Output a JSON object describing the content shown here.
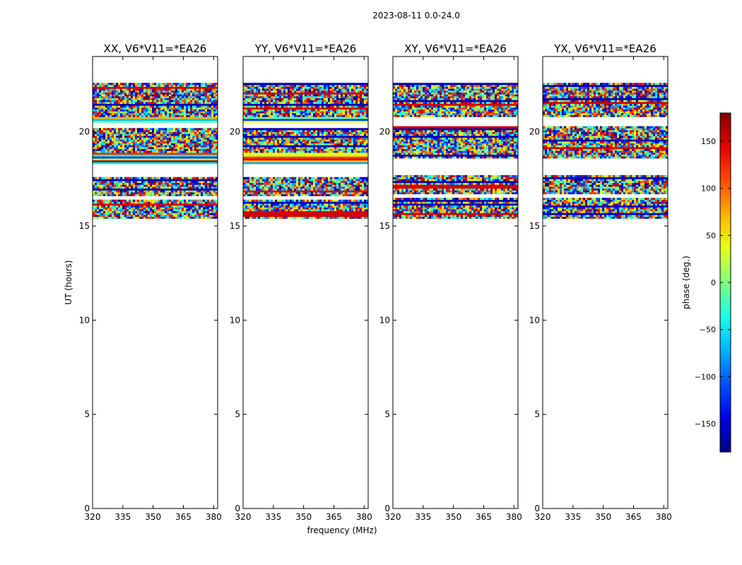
{
  "chart_data": {
    "type": "heatmap",
    "suptitle": "2023-08-11 0.0-24.0",
    "xlabel": "frequency (MHz)",
    "ylabel": "UT (hours)",
    "xlim": [
      320,
      382
    ],
    "ylim": [
      0,
      24
    ],
    "xticks": [
      320,
      335,
      350,
      365,
      380
    ],
    "yticks": [
      0,
      5,
      10,
      15,
      20
    ],
    "panels": [
      {
        "title": "XX, V6*V11=*EA26",
        "data_range_ut": [
          15.4,
          22.6
        ],
        "noisy_ut_ranges": [
          [
            20.8,
            22.6
          ],
          [
            18.9,
            20.2
          ],
          [
            16.6,
            17.6
          ],
          [
            15.4,
            16.4
          ]
        ],
        "banded_ut_ranges": [
          [
            18.3,
            18.9
          ],
          [
            20.5,
            20.8
          ]
        ],
        "gap_ut_ranges": [
          [
            17.6,
            18.3
          ],
          [
            20.2,
            20.5
          ]
        ]
      },
      {
        "title": "YY, V6*V11=*EA26",
        "data_range_ut": [
          15.4,
          22.6
        ],
        "noisy_ut_ranges": [
          [
            20.8,
            22.6
          ],
          [
            18.9,
            20.2
          ],
          [
            16.6,
            17.6
          ],
          [
            15.4,
            16.4
          ]
        ],
        "banded_ut_ranges": [
          [
            18.3,
            18.9
          ],
          [
            20.5,
            20.8
          ]
        ],
        "gap_ut_ranges": [
          [
            17.6,
            18.3
          ],
          [
            20.2,
            20.5
          ]
        ]
      },
      {
        "title": "XY, V6*V11=*EA26",
        "data_range_ut": [
          15.4,
          22.6
        ],
        "noisy_ut_ranges": [
          [
            20.8,
            22.6
          ],
          [
            18.6,
            20.3
          ],
          [
            16.7,
            17.7
          ],
          [
            15.4,
            16.5
          ]
        ],
        "banded_ut_ranges": [],
        "gap_ut_ranges": [
          [
            17.7,
            18.6
          ],
          [
            20.3,
            20.8
          ]
        ]
      },
      {
        "title": "YX, V6*V11=*EA26",
        "data_range_ut": [
          15.4,
          22.6
        ],
        "noisy_ut_ranges": [
          [
            20.8,
            22.6
          ],
          [
            18.6,
            20.3
          ],
          [
            16.7,
            17.7
          ],
          [
            15.4,
            16.5
          ]
        ],
        "banded_ut_ranges": [],
        "gap_ut_ranges": [
          [
            17.7,
            18.6
          ],
          [
            20.3,
            20.8
          ]
        ]
      }
    ],
    "colorbar": {
      "label": "phase (deg.)",
      "min": -180,
      "max": 180,
      "ticks": [
        150,
        100,
        50,
        0,
        -50,
        -100,
        -150
      ],
      "tick_labels": [
        "150",
        "100",
        "50",
        "0",
        "−50",
        "−100",
        "−150"
      ],
      "colormap": "jet"
    }
  }
}
